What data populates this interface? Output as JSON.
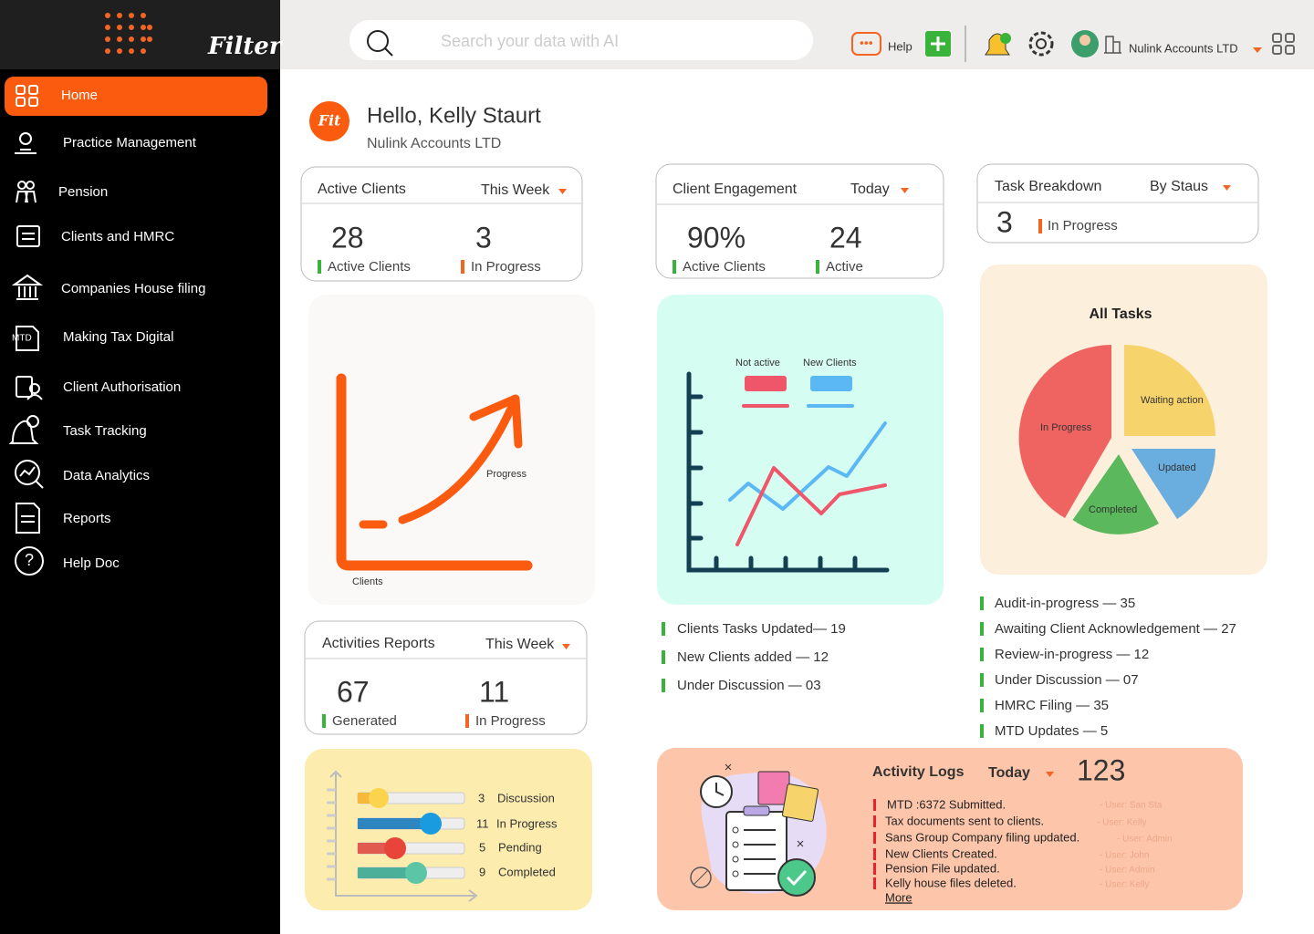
{
  "sidebar": {
    "brand": "Filter",
    "nav": [
      "Home",
      "Practice Management",
      "Pension",
      "Clients and HMRC",
      "Companies House filing",
      "Making Tax Digital",
      "Client Authorisation",
      "Task Tracking",
      "Data Analytics",
      "Reports",
      "Help Doc"
    ]
  },
  "topbar": {
    "search_placeholder": "Search your data with AI",
    "help": "Help",
    "account": "Nulink Accounts LTD"
  },
  "greeting": {
    "logo": "Fit",
    "title": "Hello, Kelly Staurt",
    "subtitle": "Nulink Accounts LTD"
  },
  "active_clients": {
    "title": "Active Clients",
    "period": "This Week",
    "stats": [
      {
        "value": 28,
        "label": "Active Clients"
      },
      {
        "value": 3,
        "label": "In Progress"
      }
    ]
  },
  "client_engagement": {
    "title": "Client Engagement",
    "period": "Today",
    "stats": [
      {
        "value": "90%",
        "label": "Active Clients"
      },
      {
        "value": 24,
        "label": "Active"
      }
    ],
    "list": [
      "Clients Tasks Updated— 19",
      "New Clients added — 12",
      "Under Discussion — 03"
    ]
  },
  "task_breakdown": {
    "title": "Task Breakdown",
    "period": "By Staus",
    "value": 3,
    "label": "In Progress",
    "list": [
      "Audit-in-progress — 35",
      "Awaiting Client Acknowledgement — 27",
      "Review-in-progress — 12",
      "Under Discussion — 07",
      "HMRC Filing — 35",
      "MTD Updates — 5"
    ]
  },
  "progress_illustration": {
    "y_label": "Progress",
    "x_label": "Clients"
  },
  "engagement_illustration": {
    "legend": [
      "Not active",
      "New Clients"
    ]
  },
  "all_tasks": {
    "title": "All Tasks",
    "slices": [
      "In Progress",
      "Waiting action",
      "Updated",
      "Completed"
    ]
  },
  "activities_reports": {
    "title": "Activities Reports",
    "period": "This Week",
    "stats": [
      {
        "value": 67,
        "label": "Generated"
      },
      {
        "value": 11,
        "label": "In Progress"
      }
    ],
    "rows": [
      {
        "count": 3,
        "label": "Discussion"
      },
      {
        "count": 11,
        "label": "In Progress"
      },
      {
        "count": 5,
        "label": "Pending"
      },
      {
        "count": 9,
        "label": "Completed"
      }
    ]
  },
  "activity_logs": {
    "title": "Activity Logs",
    "period": "Today",
    "count": 123,
    "entries": [
      {
        "text": "MTD :6372 Submitted.",
        "user": "- User: San Sta"
      },
      {
        "text": "Tax documents sent to clients.",
        "user": "- User: Kelly"
      },
      {
        "text": "Sans Group Company filing updated.",
        "user": "- User: Admin"
      },
      {
        "text": "New Clients Created.",
        "user": "- User: John"
      },
      {
        "text": "Pension File updated.",
        "user": "- User: Admin"
      },
      {
        "text": "Kelly house files deleted.",
        "user": "- User: Kelly"
      }
    ],
    "more": "More"
  }
}
